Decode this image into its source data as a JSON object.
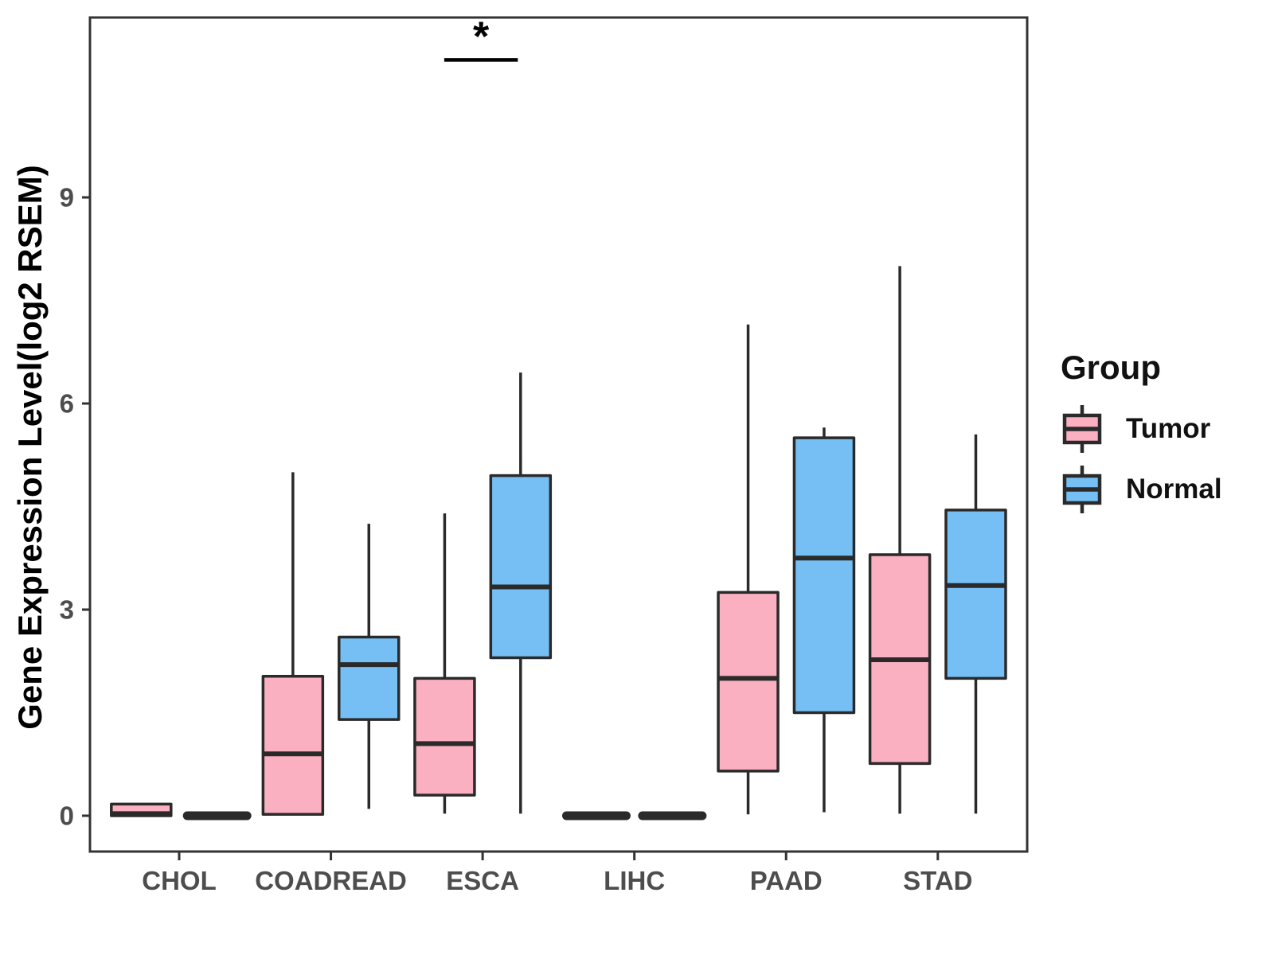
{
  "figure": {
    "background": "#ffffff"
  },
  "chart_data": {
    "type": "grouped_boxplot",
    "title": "",
    "xlabel": "",
    "ylabel": "Gene Expression Level(log2 RSEM)",
    "categories": [
      "CHOL",
      "COADREAD",
      "ESCA",
      "LIHC",
      "PAAD",
      "STAD"
    ],
    "y_ticks": [
      0,
      3,
      6,
      9
    ],
    "ylim": [
      -0.52,
      11.62
    ],
    "grid": false,
    "legend": {
      "title": "Group",
      "position": "right",
      "entries": [
        {
          "label": "Tumor",
          "color": "#FAB0C0"
        },
        {
          "label": "Normal",
          "color": "#76BFF4"
        }
      ]
    },
    "series": [
      {
        "name": "Tumor",
        "color": "#FAB0C0",
        "boxes": [
          {
            "category": "CHOL",
            "min": 0,
            "q1": 0,
            "median": 0.03,
            "q3": 0.17,
            "max": 0.17
          },
          {
            "category": "COADREAD",
            "min": 0,
            "q1": 0.02,
            "median": 0.9,
            "q3": 2.03,
            "max": 5.0
          },
          {
            "category": "ESCA",
            "min": 0.03,
            "q1": 0.3,
            "median": 1.05,
            "q3": 2.0,
            "max": 4.4
          },
          {
            "category": "LIHC",
            "min": 0,
            "q1": 0,
            "median": 0,
            "q3": 0,
            "max": 0
          },
          {
            "category": "PAAD",
            "min": 0.02,
            "q1": 0.65,
            "median": 2.0,
            "q3": 3.25,
            "max": 7.15
          },
          {
            "category": "STAD",
            "min": 0.03,
            "q1": 0.76,
            "median": 2.27,
            "q3": 3.8,
            "max": 8.0
          }
        ]
      },
      {
        "name": "Normal",
        "color": "#76BFF4",
        "boxes": [
          {
            "category": "CHOL",
            "min": 0,
            "q1": 0,
            "median": 0,
            "q3": 0,
            "max": 0
          },
          {
            "category": "COADREAD",
            "min": 0.1,
            "q1": 1.4,
            "median": 2.2,
            "q3": 2.6,
            "max": 4.25
          },
          {
            "category": "ESCA",
            "min": 0.03,
            "q1": 2.3,
            "median": 3.33,
            "q3": 4.95,
            "max": 6.45
          },
          {
            "category": "LIHC",
            "min": 0,
            "q1": 0,
            "median": 0,
            "q3": 0,
            "max": 0
          },
          {
            "category": "PAAD",
            "min": 0.05,
            "q1": 1.5,
            "median": 3.75,
            "q3": 5.5,
            "max": 5.65
          },
          {
            "category": "STAD",
            "min": 0.03,
            "q1": 2.0,
            "median": 3.35,
            "q3": 4.45,
            "max": 5.55
          }
        ]
      }
    ],
    "annotations": [
      {
        "type": "significance",
        "label": "*",
        "category": "ESCA",
        "between": [
          "Tumor",
          "Normal"
        ],
        "y_value": 11.0
      }
    ],
    "style": {
      "box_border": "#2A2A2A",
      "axis_color": "#333333",
      "tick_label_color": "#4D4D4D",
      "axis_title_color": "#000000"
    }
  }
}
